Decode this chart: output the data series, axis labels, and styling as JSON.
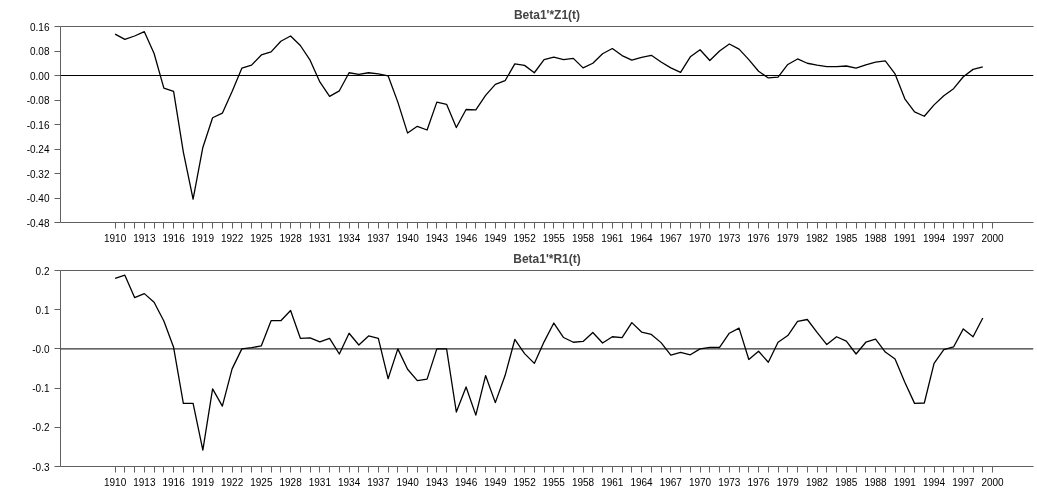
{
  "chart_data": [
    {
      "type": "line",
      "title": "Beta1'*Z1(t)",
      "x": [
        1910,
        1911,
        1912,
        1913,
        1914,
        1915,
        1916,
        1917,
        1918,
        1919,
        1920,
        1921,
        1922,
        1923,
        1924,
        1925,
        1926,
        1927,
        1928,
        1929,
        1930,
        1931,
        1932,
        1933,
        1934,
        1935,
        1936,
        1937,
        1938,
        1939,
        1940,
        1941,
        1942,
        1943,
        1944,
        1945,
        1946,
        1947,
        1948,
        1949,
        1950,
        1951,
        1952,
        1953,
        1954,
        1955,
        1956,
        1957,
        1958,
        1959,
        1960,
        1961,
        1962,
        1963,
        1964,
        1965,
        1966,
        1967,
        1968,
        1969,
        1970,
        1971,
        1972,
        1973,
        1974,
        1975,
        1976,
        1977,
        1978,
        1979,
        1980,
        1981,
        1982,
        1983,
        1984,
        1985,
        1986,
        1987,
        1988,
        1989,
        1990,
        1991,
        1992,
        1993,
        1994,
        1995,
        1996,
        1997,
        1998,
        1999
      ],
      "series": [
        {
          "color": "#000000",
          "values": [
            0.135,
            0.118,
            0.129,
            0.143,
            0.072,
            -0.041,
            -0.052,
            -0.25,
            -0.404,
            -0.235,
            -0.138,
            -0.123,
            -0.052,
            0.024,
            0.034,
            0.067,
            0.077,
            0.112,
            0.129,
            0.098,
            0.05,
            -0.021,
            -0.068,
            -0.05,
            0.009,
            0.004,
            0.009,
            0.005,
            -0.001,
            -0.087,
            -0.188,
            -0.166,
            -0.178,
            -0.087,
            -0.094,
            -0.17,
            -0.111,
            -0.112,
            -0.065,
            -0.029,
            -0.017,
            0.038,
            0.033,
            0.009,
            0.052,
            0.06,
            0.052,
            0.056,
            0.025,
            0.04,
            0.071,
            0.088,
            0.065,
            0.05,
            0.059,
            0.066,
            0.044,
            0.025,
            0.01,
            0.061,
            0.084,
            0.049,
            0.08,
            0.103,
            0.086,
            0.052,
            0.014,
            -0.008,
            -0.005,
            0.036,
            0.054,
            0.04,
            0.034,
            0.029,
            0.029,
            0.031,
            0.024,
            0.035,
            0.044,
            0.048,
            0.005,
            -0.076,
            -0.119,
            -0.133,
            -0.096,
            -0.066,
            -0.043,
            -0.004,
            0.02,
            0.028
          ]
        }
      ],
      "xlim": [
        1904.4,
        2004.2
      ],
      "xticks": [
        1910,
        {
          "value": 1911,
          "label": null
        },
        {
          "value": 1912,
          "label": null
        },
        1913,
        {
          "value": 1914,
          "label": null
        },
        {
          "value": 1915,
          "label": null
        },
        1916,
        {
          "value": 1917,
          "label": null
        },
        {
          "value": 1918,
          "label": null
        },
        1919,
        {
          "value": 1920,
          "label": null
        },
        {
          "value": 1921,
          "label": null
        },
        1922,
        {
          "value": 1923,
          "label": null
        },
        {
          "value": 1924,
          "label": null
        },
        1925,
        {
          "value": 1926,
          "label": null
        },
        {
          "value": 1927,
          "label": null
        },
        1928,
        {
          "value": 1929,
          "label": null
        },
        {
          "value": 1930,
          "label": null
        },
        1931,
        {
          "value": 1932,
          "label": null
        },
        {
          "value": 1933,
          "label": null
        },
        1934,
        {
          "value": 1935,
          "label": null
        },
        {
          "value": 1936,
          "label": null
        },
        1937,
        {
          "value": 1938,
          "label": null
        },
        {
          "value": 1939,
          "label": null
        },
        1940,
        {
          "value": 1941,
          "label": null
        },
        {
          "value": 1942,
          "label": null
        },
        1943,
        {
          "value": 1944,
          "label": null
        },
        {
          "value": 1945,
          "label": null
        },
        1946,
        {
          "value": 1947,
          "label": null
        },
        {
          "value": 1948,
          "label": null
        },
        1949,
        {
          "value": 1950,
          "label": null
        },
        {
          "value": 1951,
          "label": null
        },
        1952,
        {
          "value": 1953,
          "label": null
        },
        {
          "value": 1954,
          "label": null
        },
        1955,
        {
          "value": 1956,
          "label": null
        },
        {
          "value": 1957,
          "label": null
        },
        1958,
        {
          "value": 1959,
          "label": null
        },
        {
          "value": 1960,
          "label": null
        },
        1961,
        {
          "value": 1962,
          "label": null
        },
        {
          "value": 1963,
          "label": null
        },
        1964,
        {
          "value": 1965,
          "label": null
        },
        {
          "value": 1966,
          "label": null
        },
        1967,
        {
          "value": 1968,
          "label": null
        },
        {
          "value": 1969,
          "label": null
        },
        1970,
        {
          "value": 1971,
          "label": null
        },
        {
          "value": 1972,
          "label": null
        },
        1973,
        {
          "value": 1974,
          "label": null
        },
        {
          "value": 1975,
          "label": null
        },
        1976,
        {
          "value": 1977,
          "label": null
        },
        {
          "value": 1978,
          "label": null
        },
        1979,
        {
          "value": 1980,
          "label": null
        },
        {
          "value": 1981,
          "label": null
        },
        1982,
        {
          "value": 1983,
          "label": null
        },
        {
          "value": 1984,
          "label": null
        },
        1985,
        {
          "value": 1986,
          "label": null
        },
        {
          "value": 1987,
          "label": null
        },
        1988,
        {
          "value": 1989,
          "label": null
        },
        {
          "value": 1990,
          "label": null
        },
        1991,
        {
          "value": 1992,
          "label": null
        },
        {
          "value": 1993,
          "label": null
        },
        1994,
        {
          "value": 1995,
          "label": null
        },
        {
          "value": 1996,
          "label": null
        },
        1997,
        {
          "value": 1998,
          "label": null
        },
        {
          "value": 1999,
          "label": null
        },
        2000
      ],
      "ylim": [
        -0.48,
        0.16
      ],
      "yticks": [
        {
          "value": 0.16,
          "label": "0.16"
        },
        {
          "value": 0.08,
          "label": "0.08"
        },
        {
          "value": 0,
          "label": "0.00"
        },
        {
          "value": -0.08,
          "label": "-0.08"
        },
        {
          "value": -0.16,
          "label": "-0.16"
        },
        {
          "value": -0.24,
          "label": "-0.24"
        },
        {
          "value": -0.32,
          "label": "-0.32"
        },
        {
          "value": -0.4,
          "label": "-0.40"
        },
        {
          "value": -0.48,
          "label": "-0.48"
        }
      ],
      "ref_lines": [
        {
          "axis": "y",
          "value": 0,
          "color": "#000000"
        }
      ],
      "grid": false,
      "marker": "none",
      "line_style": "solid"
    },
    {
      "type": "line",
      "title": "Beta1'*R1(t)",
      "x": [
        1910,
        1911,
        1912,
        1913,
        1914,
        1915,
        1916,
        1917,
        1918,
        1919,
        1920,
        1921,
        1922,
        1923,
        1924,
        1925,
        1926,
        1927,
        1928,
        1929,
        1930,
        1931,
        1932,
        1933,
        1934,
        1935,
        1936,
        1937,
        1938,
        1939,
        1940,
        1941,
        1942,
        1943,
        1944,
        1945,
        1946,
        1947,
        1948,
        1949,
        1950,
        1951,
        1952,
        1953,
        1954,
        1955,
        1956,
        1957,
        1958,
        1959,
        1960,
        1961,
        1962,
        1963,
        1964,
        1965,
        1966,
        1967,
        1968,
        1969,
        1970,
        1971,
        1972,
        1973,
        1974,
        1975,
        1976,
        1977,
        1978,
        1979,
        1980,
        1981,
        1982,
        1983,
        1984,
        1985,
        1986,
        1987,
        1988,
        1989,
        1990,
        1991,
        1992,
        1993,
        1994,
        1995,
        1996,
        1997,
        1998,
        1999
      ],
      "series": [
        {
          "color": "#000000",
          "values": [
            0.18,
            0.188,
            0.131,
            0.141,
            0.119,
            0.071,
            0.004,
            -0.139,
            -0.139,
            -0.258,
            -0.102,
            -0.146,
            -0.051,
            0.0,
            0.003,
            0.008,
            0.072,
            0.072,
            0.098,
            0.027,
            0.028,
            0.018,
            0.027,
            -0.013,
            0.04,
            0.01,
            0.033,
            0.027,
            -0.076,
            0.0,
            -0.052,
            -0.081,
            -0.077,
            0.0,
            0.0,
            -0.161,
            -0.097,
            -0.169,
            -0.068,
            -0.137,
            -0.068,
            0.024,
            -0.012,
            -0.037,
            0.018,
            0.066,
            0.029,
            0.017,
            0.019,
            0.042,
            0.015,
            0.031,
            0.029,
            0.067,
            0.043,
            0.037,
            0.016,
            -0.016,
            -0.009,
            -0.015,
            0.0,
            0.004,
            0.004,
            0.04,
            0.053,
            -0.027,
            -0.006,
            -0.034,
            0.017,
            0.034,
            0.07,
            0.075,
            0.042,
            0.011,
            0.031,
            0.02,
            -0.013,
            0.017,
            0.025,
            -0.008,
            -0.026,
            -0.085,
            -0.139,
            -0.138,
            -0.037,
            -0.002,
            0.005,
            0.051,
            0.031,
            0.079
          ]
        }
      ],
      "xlim": [
        1904.4,
        2004.2
      ],
      "xticks": [
        1910,
        {
          "value": 1911,
          "label": null
        },
        {
          "value": 1912,
          "label": null
        },
        1913,
        {
          "value": 1914,
          "label": null
        },
        {
          "value": 1915,
          "label": null
        },
        1916,
        {
          "value": 1917,
          "label": null
        },
        {
          "value": 1918,
          "label": null
        },
        1919,
        {
          "value": 1920,
          "label": null
        },
        {
          "value": 1921,
          "label": null
        },
        1922,
        {
          "value": 1923,
          "label": null
        },
        {
          "value": 1924,
          "label": null
        },
        1925,
        {
          "value": 1926,
          "label": null
        },
        {
          "value": 1927,
          "label": null
        },
        1928,
        {
          "value": 1929,
          "label": null
        },
        {
          "value": 1930,
          "label": null
        },
        1931,
        {
          "value": 1932,
          "label": null
        },
        {
          "value": 1933,
          "label": null
        },
        1934,
        {
          "value": 1935,
          "label": null
        },
        {
          "value": 1936,
          "label": null
        },
        1937,
        {
          "value": 1938,
          "label": null
        },
        {
          "value": 1939,
          "label": null
        },
        1940,
        {
          "value": 1941,
          "label": null
        },
        {
          "value": 1942,
          "label": null
        },
        1943,
        {
          "value": 1944,
          "label": null
        },
        {
          "value": 1945,
          "label": null
        },
        1946,
        {
          "value": 1947,
          "label": null
        },
        {
          "value": 1948,
          "label": null
        },
        1949,
        {
          "value": 1950,
          "label": null
        },
        {
          "value": 1951,
          "label": null
        },
        1952,
        {
          "value": 1953,
          "label": null
        },
        {
          "value": 1954,
          "label": null
        },
        1955,
        {
          "value": 1956,
          "label": null
        },
        {
          "value": 1957,
          "label": null
        },
        1958,
        {
          "value": 1959,
          "label": null
        },
        {
          "value": 1960,
          "label": null
        },
        1961,
        {
          "value": 1962,
          "label": null
        },
        {
          "value": 1963,
          "label": null
        },
        1964,
        {
          "value": 1965,
          "label": null
        },
        {
          "value": 1966,
          "label": null
        },
        1967,
        {
          "value": 1968,
          "label": null
        },
        {
          "value": 1969,
          "label": null
        },
        1970,
        {
          "value": 1971,
          "label": null
        },
        {
          "value": 1972,
          "label": null
        },
        1973,
        {
          "value": 1974,
          "label": null
        },
        {
          "value": 1975,
          "label": null
        },
        1976,
        {
          "value": 1977,
          "label": null
        },
        {
          "value": 1978,
          "label": null
        },
        1979,
        {
          "value": 1980,
          "label": null
        },
        {
          "value": 1981,
          "label": null
        },
        1982,
        {
          "value": 1983,
          "label": null
        },
        {
          "value": 1984,
          "label": null
        },
        1985,
        {
          "value": 1986,
          "label": null
        },
        {
          "value": 1987,
          "label": null
        },
        1988,
        {
          "value": 1989,
          "label": null
        },
        {
          "value": 1990,
          "label": null
        },
        1991,
        {
          "value": 1992,
          "label": null
        },
        {
          "value": 1993,
          "label": null
        },
        1994,
        {
          "value": 1995,
          "label": null
        },
        {
          "value": 1996,
          "label": null
        },
        1997,
        {
          "value": 1998,
          "label": null
        },
        {
          "value": 1999,
          "label": null
        },
        2000
      ],
      "ylim": [
        -0.3,
        0.2
      ],
      "yticks": [
        0.2,
        0.1,
        {
          "value": 0,
          "label": "-0.0"
        },
        -0.1,
        -0.2,
        -0.3
      ],
      "ref_lines": [
        {
          "axis": "y",
          "value": 0,
          "color": "#000000"
        }
      ],
      "grid": false,
      "marker": "none",
      "line_style": "solid"
    }
  ]
}
